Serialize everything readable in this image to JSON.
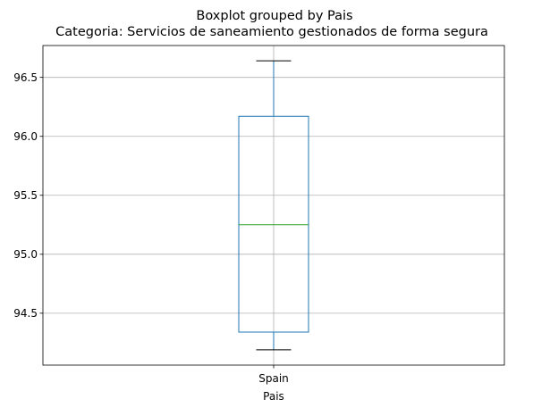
{
  "chart_data": {
    "type": "boxplot",
    "suptitle": "Boxplot grouped by Pais",
    "title": "Categoria: Servicios de saneamiento gestionados de forma segura",
    "xlabel": "Pais",
    "ylabel": "",
    "categories": [
      "Spain"
    ],
    "boxes": [
      {
        "category": "Spain",
        "whisker_low": 94.19,
        "q1": 94.34,
        "median": 95.25,
        "q3": 96.17,
        "whisker_high": 96.64
      }
    ],
    "ylim": [
      94.06,
      96.77
    ],
    "yticks": [
      94.5,
      95.0,
      95.5,
      96.0,
      96.5
    ],
    "ytick_labels": [
      "94.5",
      "95.0",
      "95.5",
      "96.0",
      "96.5"
    ],
    "grid": true,
    "colors": {
      "box": "#1f77b4",
      "median": "#2ca02c",
      "whisker": "#1f77b4",
      "cap": "#000000",
      "grid": "#b0b0b0",
      "axes": "#000000"
    }
  }
}
